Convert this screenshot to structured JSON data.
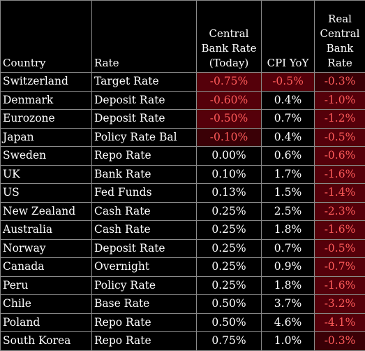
{
  "headers": {
    "country": "Country",
    "rate": "Rate",
    "central_bank_rate": [
      "Central",
      "Bank Rate",
      "(Today)"
    ],
    "cpi_yoy": "CPI YoY",
    "real_central_bank_rate": [
      "Real",
      "Central",
      "Bank",
      "Rate"
    ]
  },
  "rows": [
    {
      "country": "Switzerland",
      "rate": "Target Rate",
      "cb_rate": "-0.75%",
      "cpi": "-0.5%",
      "real": "-0.3%"
    },
    {
      "country": "Denmark",
      "rate": "Deposit Rate",
      "cb_rate": "-0.60%",
      "cpi": "0.4%",
      "real": "-1.0%"
    },
    {
      "country": "Eurozone",
      "rate": "Deposit Rate",
      "cb_rate": "-0.50%",
      "cpi": "0.7%",
      "real": "-1.2%"
    },
    {
      "country": "Japan",
      "rate": "Policy Rate Bal",
      "cb_rate": "-0.10%",
      "cpi": "0.4%",
      "real": "-0.5%"
    },
    {
      "country": "Sweden",
      "rate": "Repo Rate",
      "cb_rate": "0.00%",
      "cpi": "0.6%",
      "real": "-0.6%"
    },
    {
      "country": "UK",
      "rate": "Bank Rate",
      "cb_rate": "0.10%",
      "cpi": "1.7%",
      "real": "-1.6%"
    },
    {
      "country": "US",
      "rate": "Fed Funds",
      "cb_rate": "0.13%",
      "cpi": "1.5%",
      "real": "-1.4%"
    },
    {
      "country": "New Zealand",
      "rate": "Cash Rate",
      "cb_rate": "0.25%",
      "cpi": "2.5%",
      "real": "-2.3%"
    },
    {
      "country": "Australia",
      "rate": "Cash Rate",
      "cb_rate": "0.25%",
      "cpi": "1.8%",
      "real": "-1.6%"
    },
    {
      "country": "Norway",
      "rate": "Deposit Rate",
      "cb_rate": "0.25%",
      "cpi": "0.7%",
      "real": "-0.5%"
    },
    {
      "country": "Canada",
      "rate": "Overnight",
      "cb_rate": "0.25%",
      "cpi": "0.9%",
      "real": "-0.7%"
    },
    {
      "country": "Peru",
      "rate": "Policy Rate",
      "cb_rate": "0.25%",
      "cpi": "1.8%",
      "real": "-1.6%"
    },
    {
      "country": "Chile",
      "rate": "Base Rate",
      "cb_rate": "0.50%",
      "cpi": "3.7%",
      "real": "-3.2%"
    },
    {
      "country": "Poland",
      "rate": "Repo Rate",
      "cb_rate": "0.50%",
      "cpi": "4.6%",
      "real": "-4.1%"
    },
    {
      "country": "South Korea",
      "rate": "Repo Rate",
      "cb_rate": "0.75%",
      "cpi": "1.0%",
      "real": "-0.3%"
    }
  ],
  "colors": {
    "background": "#000000",
    "text": "#ffffff",
    "negative_text": "#ff5a5a",
    "negative_fill": "#3a0006",
    "grid": "#8a8a8a"
  }
}
